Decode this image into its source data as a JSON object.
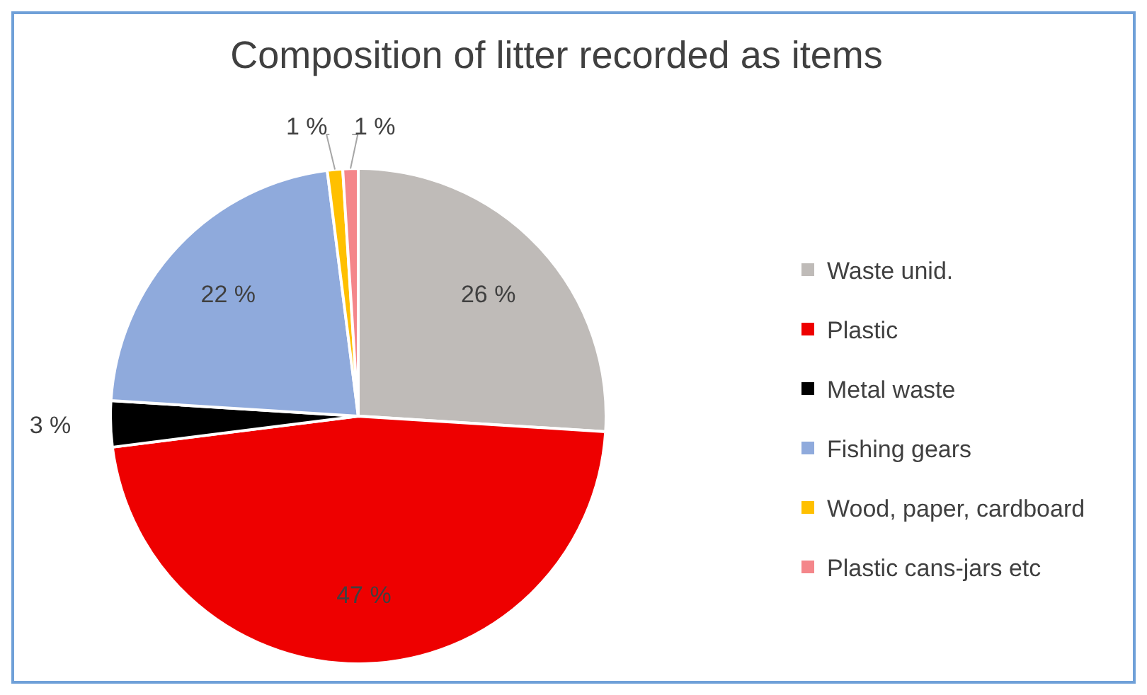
{
  "chart_data": {
    "type": "pie",
    "title": "Composition of litter recorded as items",
    "categories": [
      "Waste unid.",
      "Plastic",
      "Metal waste",
      "Fishing gears",
      "Wood, paper, cardboard",
      "Plastic cans-jars etc"
    ],
    "values": [
      26,
      47,
      3,
      22,
      1,
      1
    ],
    "colors": [
      "#bfbbb8",
      "#ee0000",
      "#000000",
      "#8faadc",
      "#ffc000",
      "#f4868a"
    ],
    "value_labels": [
      "26 %",
      "47 %",
      "3 %",
      "22 %",
      "1 %",
      "1 %"
    ],
    "legend": "right"
  }
}
